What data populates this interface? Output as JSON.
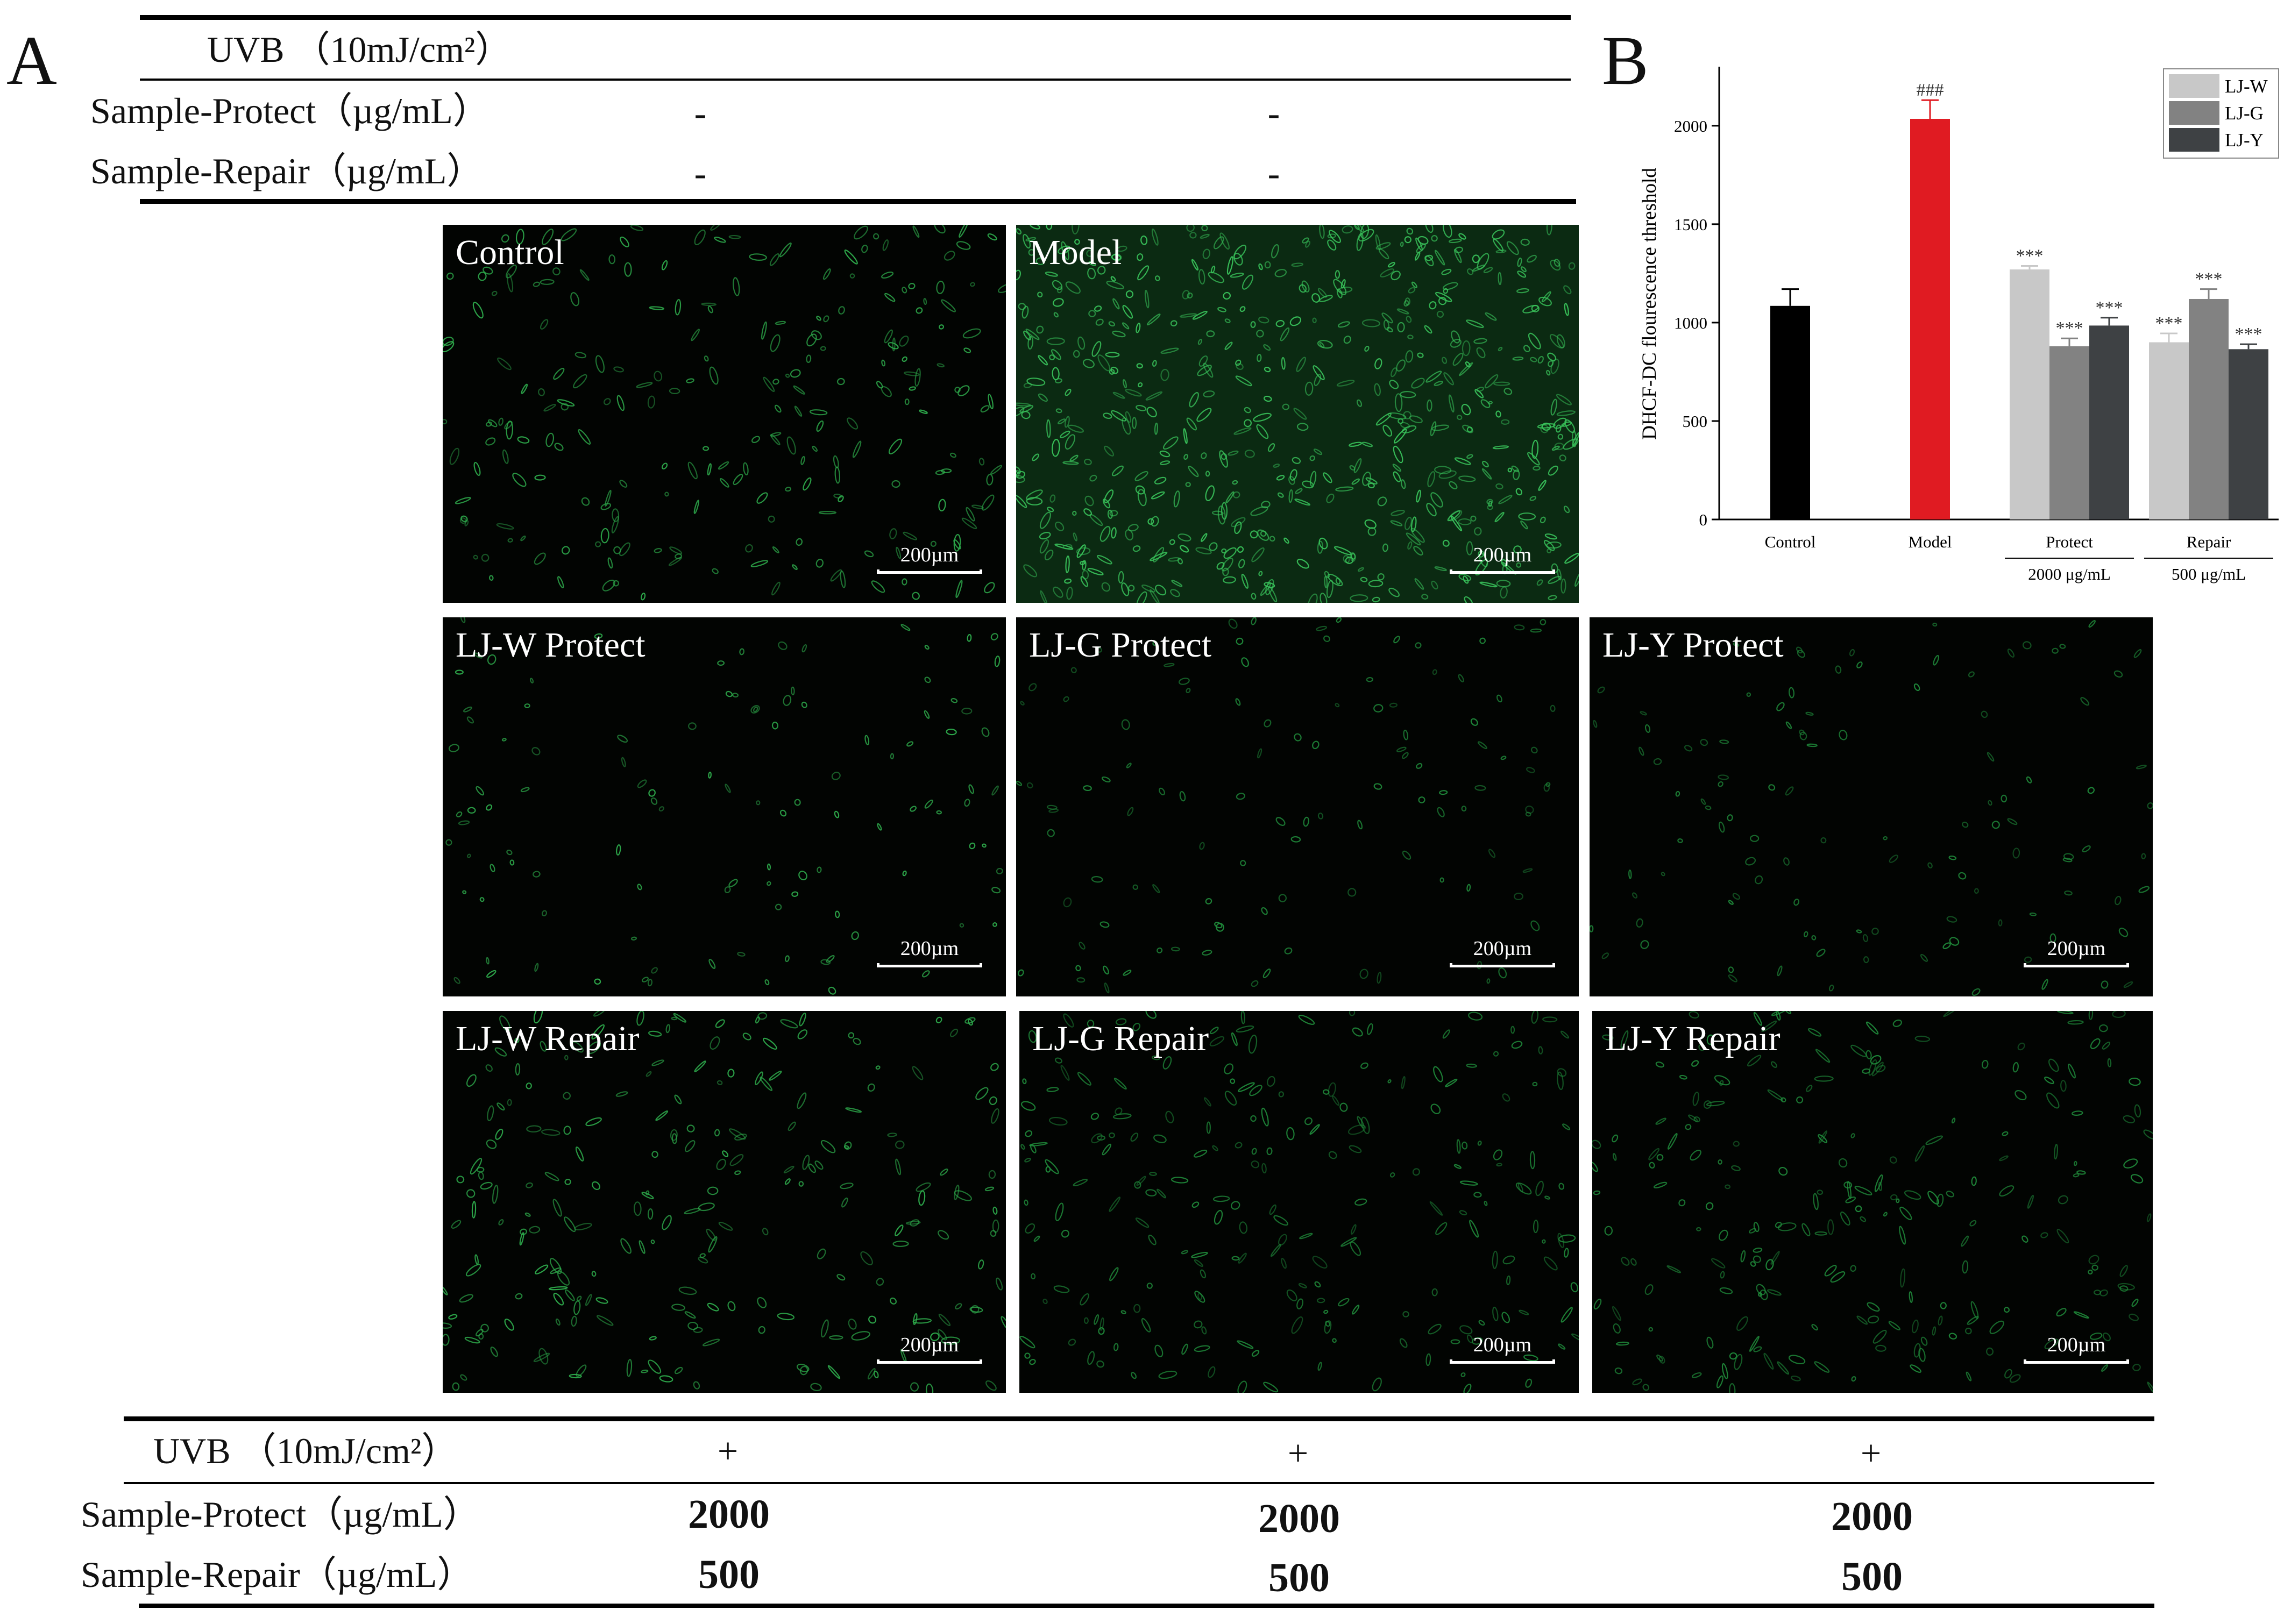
{
  "panels": {
    "a": "A",
    "b": "B"
  },
  "top_table": {
    "uvb_label": "UVB （10mJ/cm²）",
    "protect_label": "Sample-Protect（µg/mL）",
    "repair_label": "Sample-Repair（µg/mL）",
    "col1": {
      "protect": "-",
      "repair": "-"
    },
    "col2": {
      "protect": "-",
      "repair": "-"
    }
  },
  "bottom_table": {
    "uvb_label": "UVB （10mJ/cm²）",
    "protect_label": "Sample-Protect（µg/mL）",
    "repair_label": "Sample-Repair（µg/mL）",
    "cols": [
      {
        "uvb": "+",
        "protect": "2000",
        "repair": "500"
      },
      {
        "uvb": "+",
        "protect": "2000",
        "repair": "500"
      },
      {
        "uvb": "+",
        "protect": "2000",
        "repair": "500"
      }
    ]
  },
  "micrographs": {
    "scale_bar": "200µm",
    "tiles": [
      {
        "label": "Control",
        "density": "medium",
        "brightness": "medium"
      },
      {
        "label": "Model",
        "density": "high",
        "brightness": "high"
      },
      {
        "label": "LJ-W Protect",
        "density": "low",
        "brightness": "medium"
      },
      {
        "label": "LJ-G Protect",
        "density": "low",
        "brightness": "low"
      },
      {
        "label": "LJ-Y Protect",
        "density": "low",
        "brightness": "low"
      },
      {
        "label": "LJ-W Repair",
        "density": "medium",
        "brightness": "medium"
      },
      {
        "label": "LJ-G Repair",
        "density": "medium",
        "brightness": "low"
      },
      {
        "label": "LJ-Y Repair",
        "density": "medium",
        "brightness": "low"
      }
    ]
  },
  "chart_data": {
    "type": "bar",
    "ylabel": "DHCF-DC flourescence threshold",
    "ylim": [
      0,
      2300
    ],
    "yticks": [
      0,
      500,
      1000,
      1500,
      2000
    ],
    "legend": {
      "position": "top-right",
      "entries": [
        "LJ-W",
        "LJ-G",
        "LJ-Y"
      ]
    },
    "colors": {
      "control": "#000000",
      "model": "#e01b22",
      "LJ-W": "#c8c8c8",
      "LJ-G": "#828282",
      "LJ-Y": "#3e4144"
    },
    "groups": [
      {
        "name": "Control",
        "sublabel": "",
        "bars": [
          {
            "series": "control",
            "value": 1085,
            "error": 85,
            "mark": ""
          }
        ]
      },
      {
        "name": "Model",
        "sublabel": "",
        "bars": [
          {
            "series": "model",
            "value": 2035,
            "error": 95,
            "mark": "###"
          }
        ]
      },
      {
        "name": "Protect",
        "sublabel": "2000 μg/mL",
        "bars": [
          {
            "series": "LJ-W",
            "value": 1270,
            "error": 18,
            "mark": "***"
          },
          {
            "series": "LJ-G",
            "value": 880,
            "error": 40,
            "mark": "***"
          },
          {
            "series": "LJ-Y",
            "value": 985,
            "error": 40,
            "mark": "***"
          }
        ]
      },
      {
        "name": "Repair",
        "sublabel": "500 μg/mL",
        "bars": [
          {
            "series": "LJ-W",
            "value": 900,
            "error": 45,
            "mark": "***"
          },
          {
            "series": "LJ-G",
            "value": 1120,
            "error": 50,
            "mark": "***"
          },
          {
            "series": "LJ-Y",
            "value": 865,
            "error": 25,
            "mark": "***"
          }
        ]
      }
    ]
  }
}
